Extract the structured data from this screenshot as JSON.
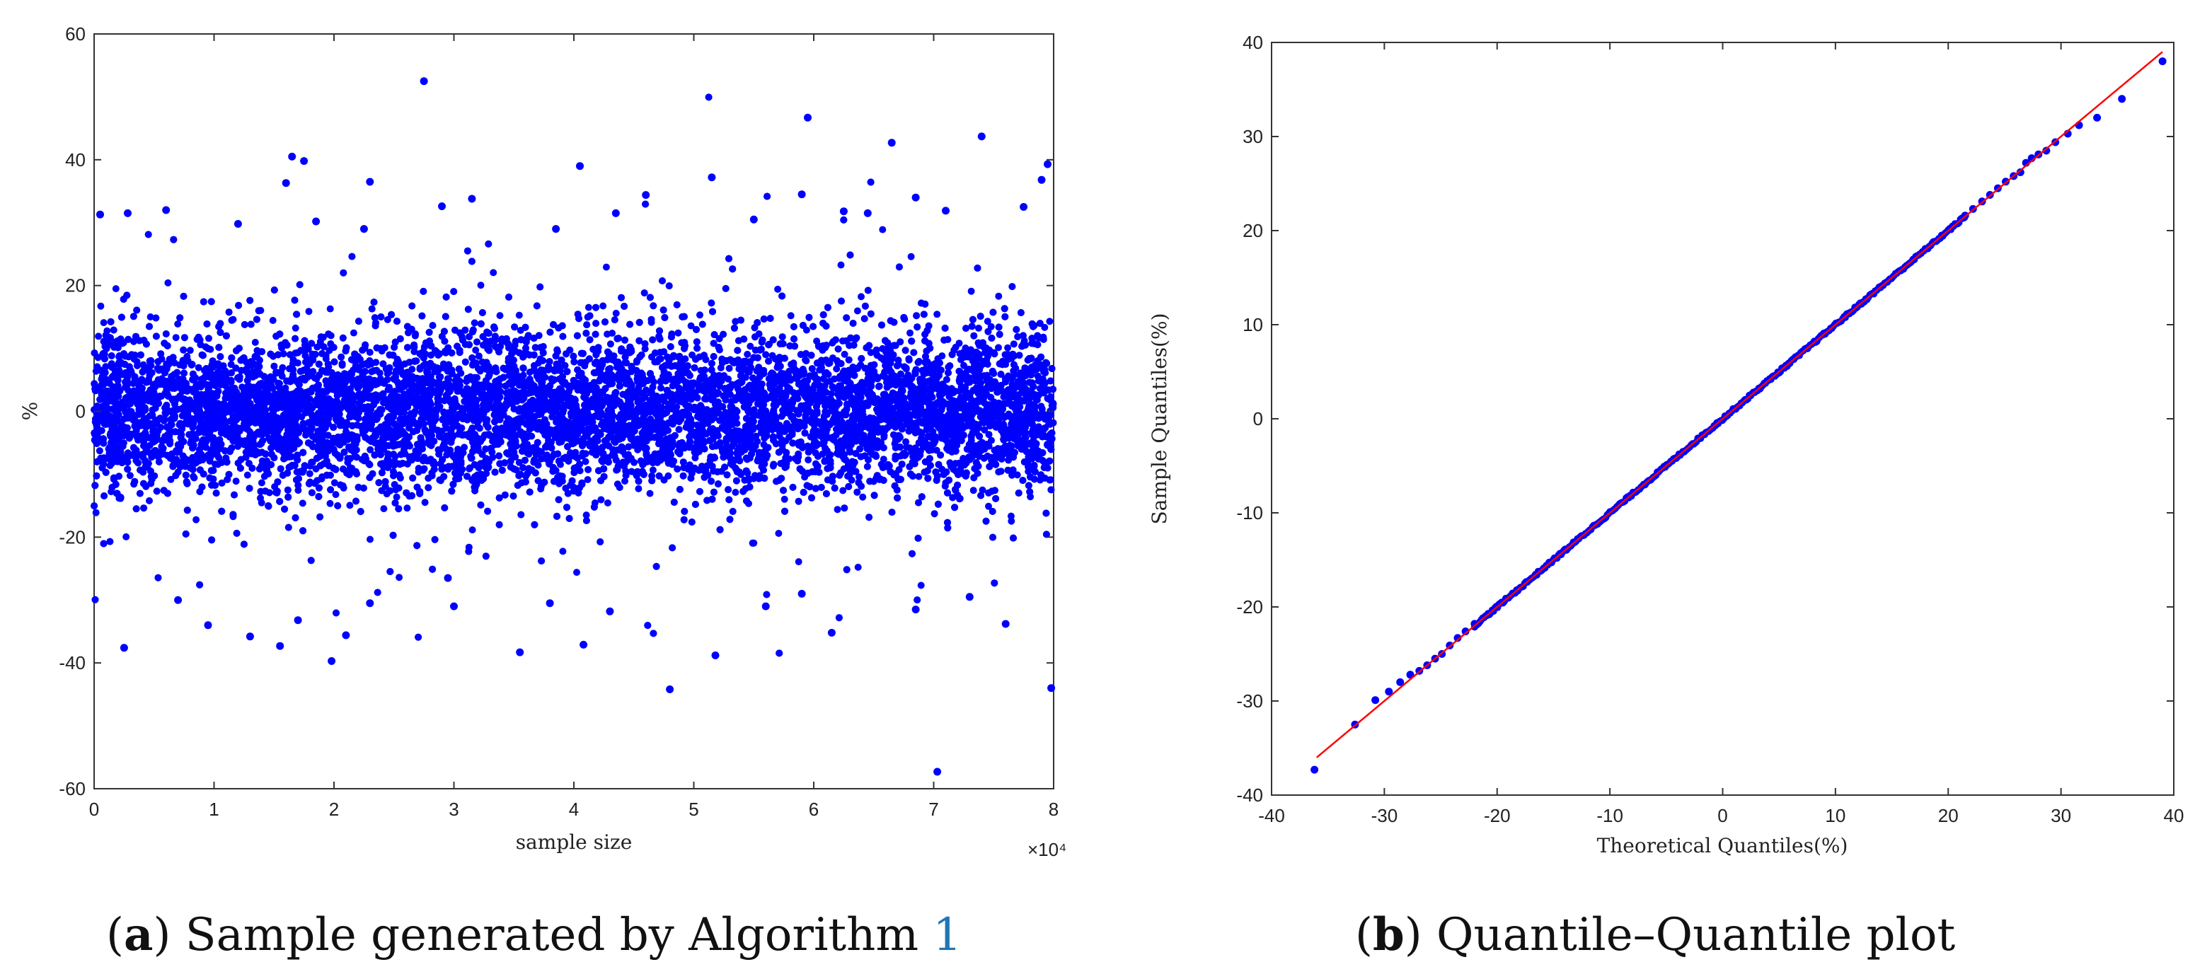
{
  "chart_data": [
    {
      "type": "scatter",
      "panel": "a",
      "caption_label": "a",
      "caption_text": "Sample generated by Algorithm",
      "caption_ref": "1",
      "xlabel": "sample size",
      "ylabel": "%",
      "x_multiplier": "×10⁴",
      "xlim": [
        0,
        8
      ],
      "ylim": [
        -60,
        60
      ],
      "x_ticks": [
        0,
        1,
        2,
        3,
        4,
        5,
        6,
        7,
        8
      ],
      "y_ticks": [
        -60,
        -40,
        -20,
        0,
        20,
        40,
        60
      ],
      "series_color": "#0000ff",
      "band_sd": 6,
      "outliers": [
        [
          2.75,
          52.5
        ],
        [
          5.95,
          46.7
        ],
        [
          7.4,
          43.7
        ],
        [
          6.65,
          42.7
        ],
        [
          1.65,
          40.5
        ],
        [
          1.75,
          39.8
        ],
        [
          4.05,
          39.0
        ],
        [
          7.95,
          39.3
        ],
        [
          7.9,
          36.8
        ],
        [
          2.3,
          36.5
        ],
        [
          1.6,
          36.3
        ],
        [
          5.15,
          37.2
        ],
        [
          0.05,
          31.3
        ],
        [
          0.28,
          31.5
        ],
        [
          0.6,
          32.0
        ],
        [
          1.2,
          29.8
        ],
        [
          3.15,
          33.8
        ],
        [
          4.6,
          34.4
        ],
        [
          6.85,
          34.0
        ],
        [
          7.1,
          31.9
        ],
        [
          5.9,
          34.5
        ],
        [
          6.25,
          31.8
        ],
        [
          6.45,
          31.5
        ],
        [
          7.75,
          32.5
        ],
        [
          2.25,
          29.0
        ],
        [
          2.9,
          32.6
        ],
        [
          3.85,
          29.0
        ],
        [
          4.35,
          31.5
        ],
        [
          5.5,
          30.5
        ],
        [
          1.85,
          30.2
        ],
        [
          0.25,
          -37.6
        ],
        [
          0.95,
          -34.0
        ],
        [
          1.3,
          -35.8
        ],
        [
          1.55,
          -37.3
        ],
        [
          1.98,
          -39.7
        ],
        [
          2.1,
          -35.6
        ],
        [
          3.55,
          -38.3
        ],
        [
          4.08,
          -37.1
        ],
        [
          4.8,
          -44.2
        ],
        [
          5.18,
          -38.8
        ],
        [
          7.03,
          -57.3
        ],
        [
          7.98,
          -44.0
        ],
        [
          7.6,
          -33.8
        ],
        [
          6.15,
          -35.2
        ],
        [
          6.85,
          -31.5
        ],
        [
          3.0,
          -31.0
        ],
        [
          2.3,
          -30.5
        ],
        [
          4.3,
          -31.8
        ],
        [
          5.6,
          -31.0
        ],
        [
          0.7,
          -30.0
        ],
        [
          1.7,
          -33.2
        ],
        [
          7.3,
          -29.5
        ],
        [
          3.8,
          -30.5
        ],
        [
          2.95,
          -26.5
        ],
        [
          5.9,
          -29.0
        ]
      ]
    },
    {
      "type": "scatter",
      "panel": "b",
      "caption_label": "b",
      "caption_text": "Quantile–Quantile plot",
      "xlabel": "Theoretical Quantiles(%)",
      "ylabel": "Sample Quantiles(%)",
      "xlim": [
        -40,
        40
      ],
      "ylim": [
        -40,
        40
      ],
      "x_ticks": [
        -40,
        -30,
        -20,
        -10,
        0,
        10,
        20,
        30,
        40
      ],
      "y_ticks": [
        -40,
        -30,
        -20,
        -10,
        0,
        10,
        20,
        30,
        40
      ],
      "series_color": "#0000ff",
      "reference_line": {
        "x": [
          -36,
          39
        ],
        "y": [
          -36,
          39
        ],
        "color": "#ff0000"
      },
      "points": [
        [
          -36.2,
          -37.3
        ],
        [
          -32.6,
          -32.5
        ],
        [
          -30.8,
          -29.9
        ],
        [
          -29.6,
          -29.0
        ],
        [
          -28.6,
          -28.0
        ],
        [
          -27.7,
          -27.2
        ],
        [
          -26.9,
          -26.8
        ],
        [
          -26.2,
          -26.2
        ],
        [
          -25.5,
          -25.5
        ],
        [
          -24.9,
          -25.0
        ],
        [
          -24.2,
          -24.1
        ],
        [
          -23.5,
          -23.3
        ],
        [
          -22.8,
          -22.6
        ],
        [
          -22.0,
          -21.8
        ],
        [
          21.5,
          21.6
        ],
        [
          22.2,
          22.3
        ],
        [
          23.0,
          23.1
        ],
        [
          23.7,
          23.8
        ],
        [
          24.4,
          24.5
        ],
        [
          25.1,
          25.2
        ],
        [
          25.8,
          25.8
        ],
        [
          26.4,
          26.2
        ],
        [
          26.9,
          27.2
        ],
        [
          27.4,
          27.7
        ],
        [
          28.0,
          28.1
        ],
        [
          28.7,
          28.5
        ],
        [
          29.5,
          29.4
        ],
        [
          30.6,
          30.3
        ],
        [
          31.6,
          31.2
        ],
        [
          33.2,
          32.0
        ],
        [
          35.4,
          34.0
        ],
        [
          39.0,
          38.0
        ]
      ],
      "dense_range": [
        -22,
        21.5
      ]
    }
  ]
}
